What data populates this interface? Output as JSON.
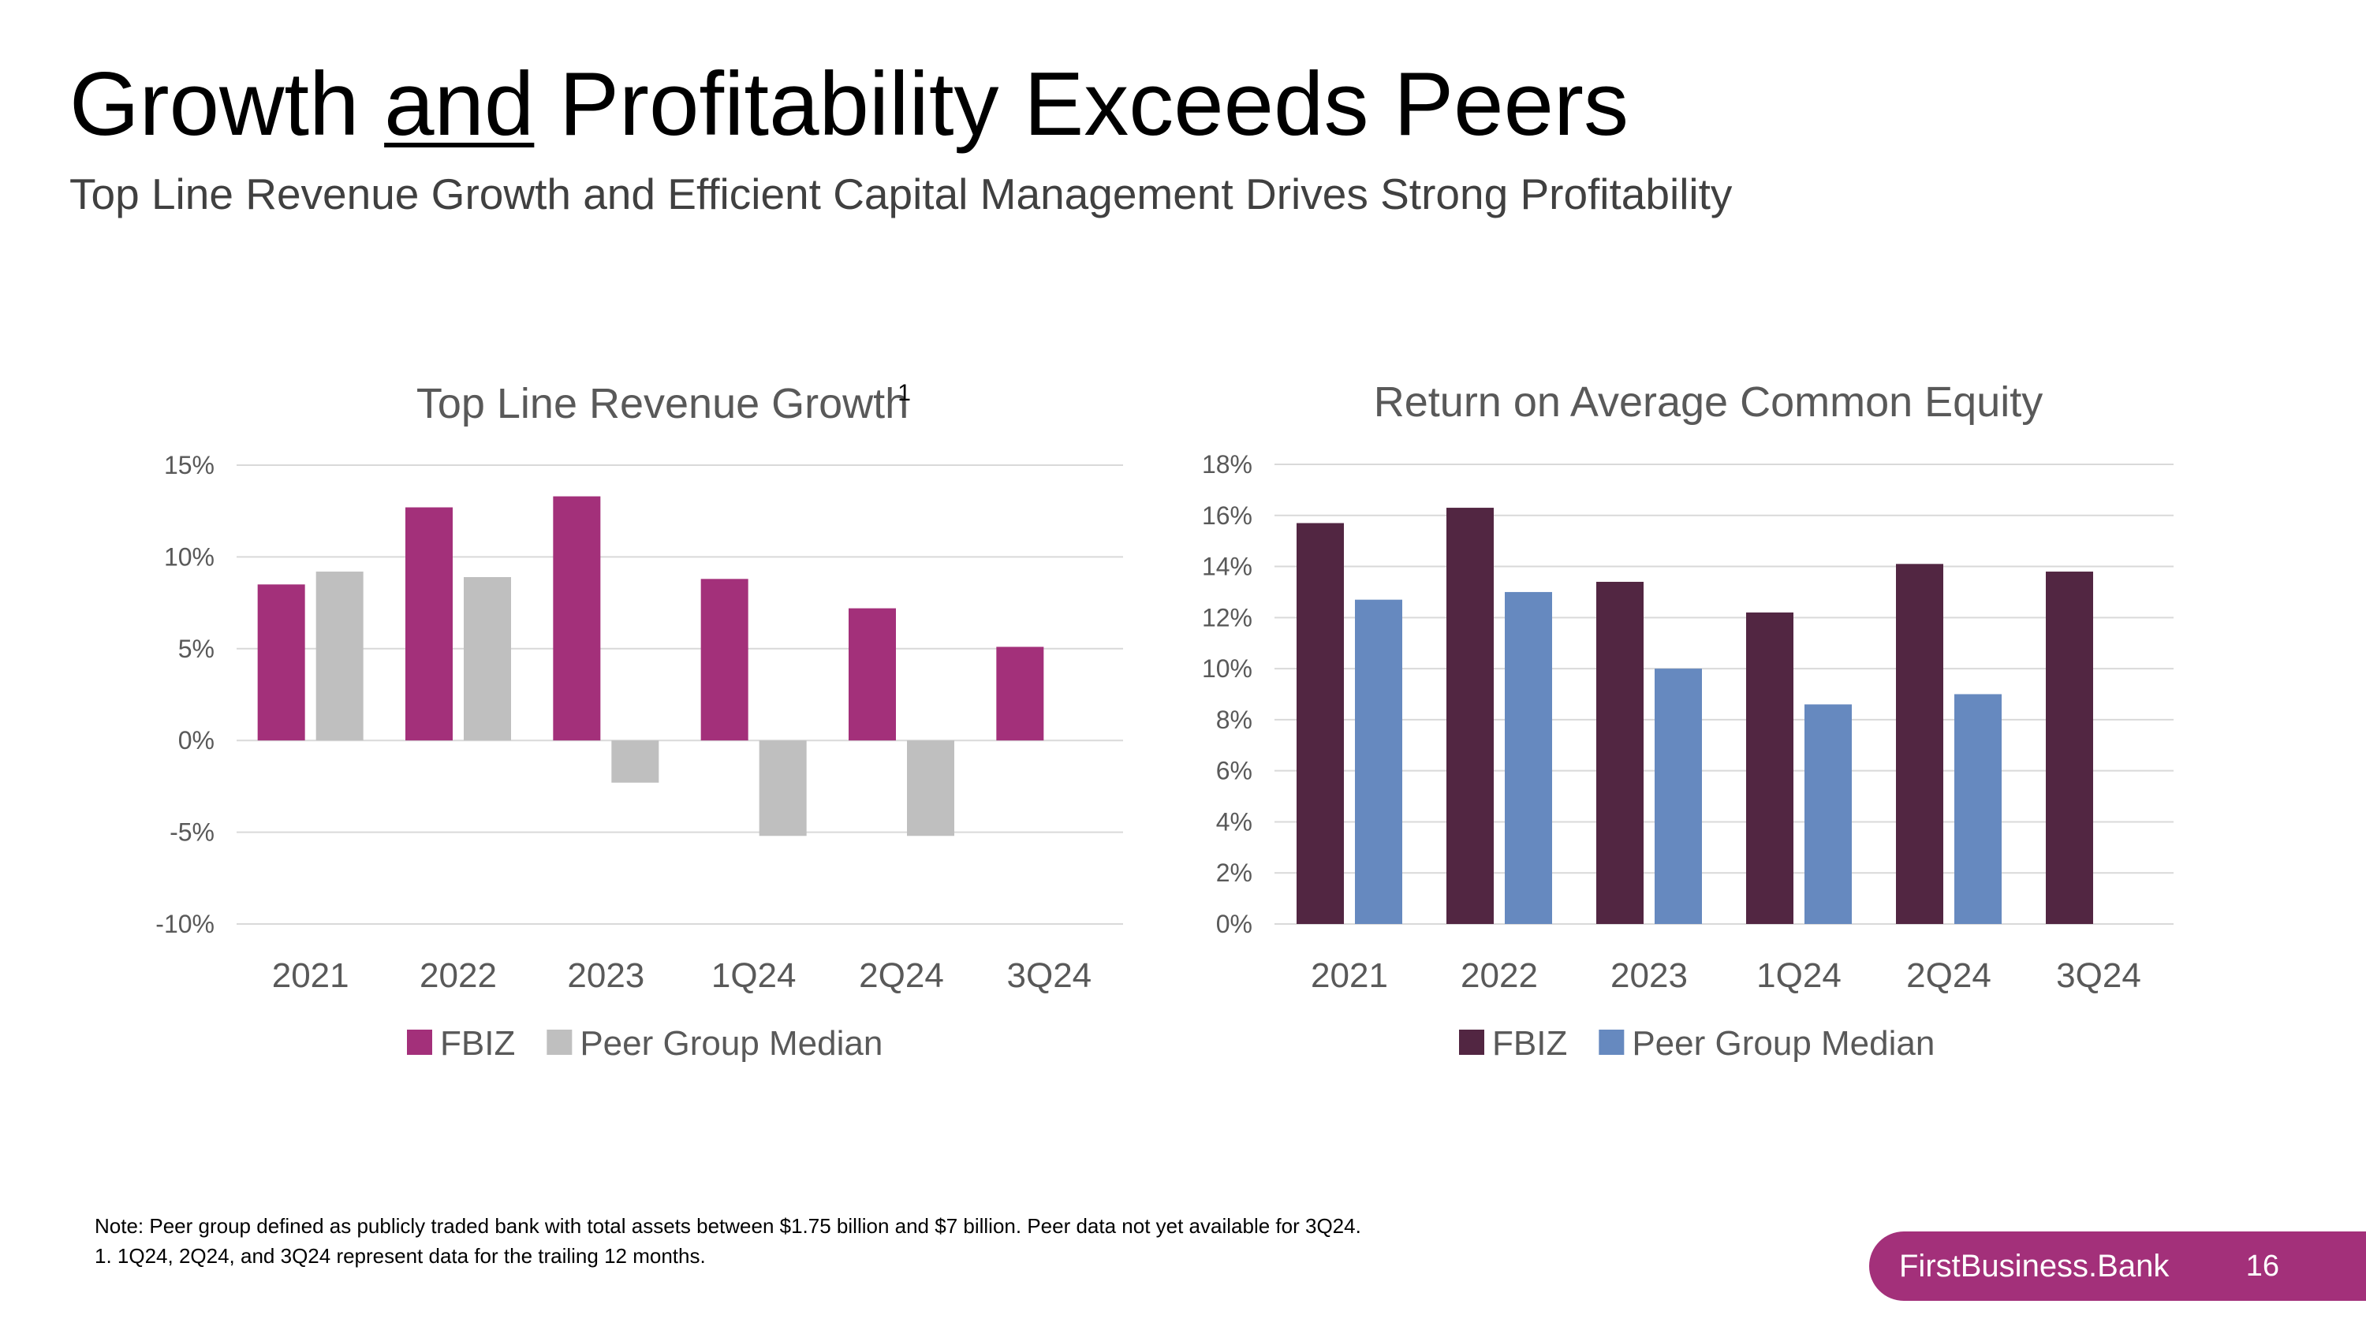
{
  "slide": {
    "title_before": "Growth ",
    "title_underlined": "and",
    "title_after": " Profitability Exceeds Peers",
    "subtitle": "Top Line Revenue Growth and Efficient Capital Management Drives Strong Profitability"
  },
  "chart_data": [
    {
      "type": "bar",
      "title": "Top Line Revenue Growth",
      "title_footnote": "1",
      "categories": [
        "2021",
        "2022",
        "2023",
        "1Q24",
        "2Q24",
        "3Q24"
      ],
      "series": [
        {
          "name": "FBIZ",
          "color": "#A3307A",
          "values": [
            8.5,
            12.7,
            13.3,
            8.8,
            7.2,
            5.1
          ]
        },
        {
          "name": "Peer Group Median",
          "color": "#BFBFBF",
          "values": [
            9.2,
            8.9,
            -2.3,
            -5.2,
            -5.2,
            null
          ]
        }
      ],
      "ylim": [
        -10,
        15
      ],
      "yticks": [
        15,
        10,
        5,
        0,
        -5,
        -10
      ],
      "ytick_labels": [
        "15%",
        "10%",
        "5%",
        "0%",
        "-5%",
        "-10%"
      ],
      "legend": "bottom",
      "grid": true
    },
    {
      "type": "bar",
      "title": "Return on Average Common Equity",
      "categories": [
        "2021",
        "2022",
        "2023",
        "1Q24",
        "2Q24",
        "3Q24"
      ],
      "series": [
        {
          "name": "FBIZ",
          "color": "#522642",
          "values": [
            15.7,
            16.3,
            13.4,
            12.2,
            14.1,
            13.8
          ]
        },
        {
          "name": "Peer Group Median",
          "color": "#6689BF",
          "values": [
            12.7,
            13.0,
            10.0,
            8.6,
            9.0,
            null
          ]
        }
      ],
      "ylim": [
        0,
        18
      ],
      "yticks": [
        18,
        16,
        14,
        12,
        10,
        8,
        6,
        4,
        2,
        0
      ],
      "ytick_labels": [
        "18%",
        "16%",
        "14%",
        "12%",
        "10%",
        "8%",
        "6%",
        "4%",
        "2%",
        "0%"
      ],
      "legend": "bottom",
      "grid": true
    }
  ],
  "notes": {
    "line1": "Note: Peer group defined as publicly traded bank with total assets between $1.75 billion and $7 billion. Peer data not yet available for 3Q24.",
    "line2": "1. 1Q24, 2Q24, and 3Q24 represent data for the trailing 12 months."
  },
  "footer": {
    "brand": "FirstBusiness.Bank",
    "page_number": "16",
    "band_color": "#A3307A"
  }
}
